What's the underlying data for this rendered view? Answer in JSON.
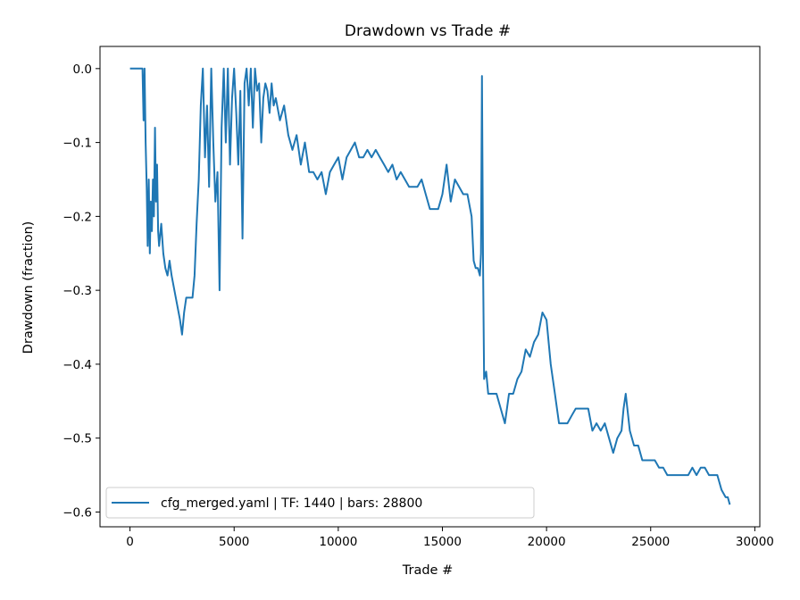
{
  "chart_data": {
    "type": "line",
    "title": "Drawdown vs Trade #",
    "xlabel": "Trade #",
    "ylabel": "Drawdown (fraction)",
    "xlim": [
      -1440,
      30240
    ],
    "ylim": [
      -0.62,
      0.03
    ],
    "xticks": [
      0,
      5000,
      10000,
      15000,
      20000,
      25000,
      30000
    ],
    "xtick_labels": [
      "0",
      "5000",
      "10000",
      "15000",
      "20000",
      "25000",
      "30000"
    ],
    "yticks": [
      0.0,
      -0.1,
      -0.2,
      -0.3,
      -0.4,
      -0.5,
      -0.6
    ],
    "ytick_labels": [
      "0.0",
      "−0.1",
      "−0.2",
      "−0.3",
      "−0.4",
      "−0.5",
      "−0.6"
    ],
    "grid": false,
    "legend_position": "lower-left",
    "series": [
      {
        "name": "cfg_merged.yaml | TF: 1440 | bars: 28800",
        "color": "#1f77b4",
        "x": [
          0,
          600,
          650,
          700,
          750,
          800,
          850,
          900,
          950,
          1000,
          1050,
          1100,
          1150,
          1200,
          1250,
          1300,
          1350,
          1400,
          1500,
          1600,
          1700,
          1800,
          1900,
          2000,
          2200,
          2400,
          2500,
          2600,
          2700,
          2800,
          3000,
          3100,
          3200,
          3300,
          3400,
          3500,
          3600,
          3700,
          3800,
          3900,
          4000,
          4100,
          4200,
          4300,
          4400,
          4500,
          4600,
          4700,
          4800,
          4900,
          5000,
          5100,
          5200,
          5300,
          5400,
          5500,
          5600,
          5700,
          5800,
          5900,
          6000,
          6100,
          6200,
          6300,
          6400,
          6500,
          6600,
          6700,
          6800,
          6900,
          7000,
          7200,
          7400,
          7600,
          7800,
          8000,
          8200,
          8400,
          8500,
          8600,
          8800,
          9000,
          9200,
          9400,
          9600,
          9800,
          10000,
          10200,
          10400,
          10600,
          10800,
          11000,
          11200,
          11400,
          11600,
          11800,
          12000,
          12200,
          12400,
          12600,
          12800,
          13000,
          13200,
          13400,
          13600,
          13800,
          14000,
          14200,
          14400,
          14600,
          14800,
          15000,
          15200,
          15400,
          15600,
          15800,
          16000,
          16200,
          16400,
          16500,
          16600,
          16700,
          16800,
          16850,
          16900,
          16950,
          17000,
          17100,
          17200,
          17400,
          17600,
          17800,
          18000,
          18200,
          18400,
          18600,
          18800,
          19000,
          19200,
          19400,
          19600,
          19800,
          20000,
          20200,
          20400,
          20600,
          20800,
          21000,
          21200,
          21400,
          21600,
          21800,
          22000,
          22200,
          22400,
          22600,
          22800,
          23000,
          23200,
          23400,
          23600,
          23700,
          23800,
          24000,
          24200,
          24400,
          24600,
          24800,
          25000,
          25200,
          25400,
          25600,
          25800,
          26000,
          26200,
          26400,
          26600,
          26800,
          27000,
          27200,
          27400,
          27600,
          27800,
          28000,
          28200,
          28400,
          28600,
          28700,
          28800
        ],
        "y": [
          0.0,
          0.0,
          -0.07,
          0.0,
          -0.1,
          -0.16,
          -0.24,
          -0.15,
          -0.25,
          -0.18,
          -0.22,
          -0.15,
          -0.2,
          -0.08,
          -0.18,
          -0.13,
          -0.22,
          -0.24,
          -0.21,
          -0.25,
          -0.27,
          -0.28,
          -0.26,
          -0.28,
          -0.31,
          -0.34,
          -0.36,
          -0.33,
          -0.31,
          -0.31,
          -0.31,
          -0.28,
          -0.21,
          -0.15,
          -0.05,
          0.0,
          -0.12,
          -0.05,
          -0.16,
          0.0,
          -0.1,
          -0.18,
          -0.14,
          -0.3,
          -0.08,
          0.0,
          -0.1,
          0.0,
          -0.13,
          -0.04,
          0.0,
          -0.06,
          -0.13,
          -0.03,
          -0.23,
          -0.02,
          0.0,
          -0.05,
          0.0,
          -0.08,
          0.0,
          -0.03,
          -0.02,
          -0.1,
          -0.04,
          -0.02,
          -0.03,
          -0.06,
          -0.02,
          -0.05,
          -0.04,
          -0.07,
          -0.05,
          -0.09,
          -0.11,
          -0.09,
          -0.13,
          -0.1,
          -0.12,
          -0.14,
          -0.14,
          -0.15,
          -0.14,
          -0.17,
          -0.14,
          -0.13,
          -0.12,
          -0.15,
          -0.12,
          -0.11,
          -0.1,
          -0.12,
          -0.12,
          -0.11,
          -0.12,
          -0.11,
          -0.12,
          -0.13,
          -0.14,
          -0.13,
          -0.15,
          -0.14,
          -0.15,
          -0.16,
          -0.16,
          -0.16,
          -0.15,
          -0.17,
          -0.19,
          -0.19,
          -0.19,
          -0.17,
          -0.13,
          -0.18,
          -0.15,
          -0.16,
          -0.17,
          -0.17,
          -0.2,
          -0.26,
          -0.27,
          -0.27,
          -0.28,
          -0.25,
          -0.01,
          -0.26,
          -0.42,
          -0.41,
          -0.44,
          -0.44,
          -0.44,
          -0.46,
          -0.48,
          -0.44,
          -0.44,
          -0.42,
          -0.41,
          -0.38,
          -0.39,
          -0.37,
          -0.36,
          -0.33,
          -0.34,
          -0.4,
          -0.44,
          -0.48,
          -0.48,
          -0.48,
          -0.47,
          -0.46,
          -0.46,
          -0.46,
          -0.46,
          -0.49,
          -0.48,
          -0.49,
          -0.48,
          -0.5,
          -0.52,
          -0.5,
          -0.49,
          -0.46,
          -0.44,
          -0.49,
          -0.51,
          -0.51,
          -0.53,
          -0.53,
          -0.53,
          -0.53,
          -0.54,
          -0.54,
          -0.55,
          -0.55,
          -0.55,
          -0.55,
          -0.55,
          -0.55,
          -0.54,
          -0.55,
          -0.54,
          -0.54,
          -0.55,
          -0.55,
          -0.55,
          -0.57,
          -0.58,
          -0.58,
          -0.59
        ]
      }
    ]
  }
}
